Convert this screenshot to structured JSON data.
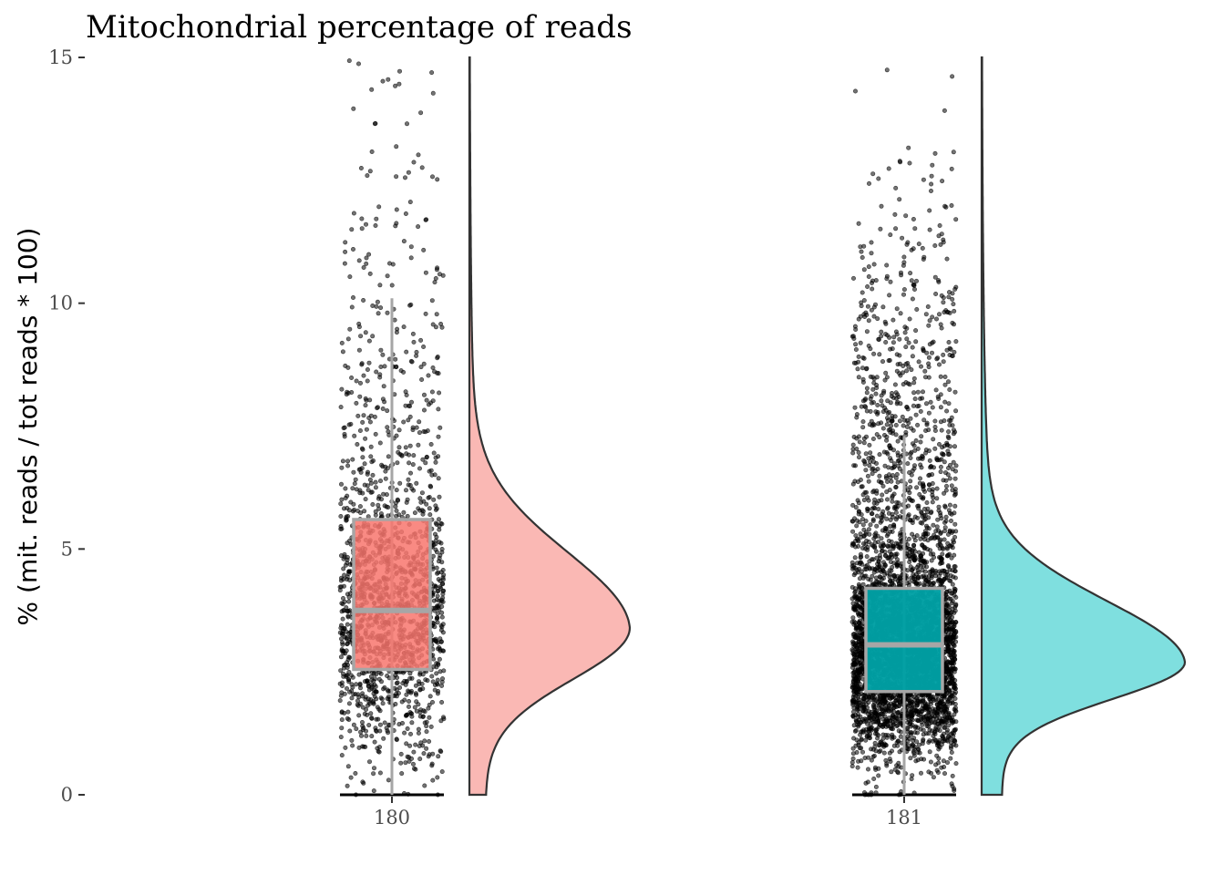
{
  "chart_data": {
    "type": "raincloud",
    "title": "Mitochondrial percentage of reads",
    "xlabel": "",
    "ylabel": "% (mit. reads / tot reads * 100)",
    "ylim": [
      0,
      15
    ],
    "yticks": [
      0,
      5,
      10,
      15
    ],
    "grid": false,
    "legend": "none",
    "categories": [
      "180",
      "181"
    ],
    "series": [
      {
        "category": "180",
        "color": "#F8766D",
        "violin_fill": "#FAB8B4",
        "box": {
          "q1": 2.55,
          "median": 3.75,
          "q3": 5.6,
          "whisker_low": 0.0,
          "whisker_high": 10.1
        },
        "density_peak": 3.4,
        "points_n": 1700
      },
      {
        "category": "181",
        "color": "#00A0A4",
        "violin_fill": "#7FDFDF",
        "box": {
          "q1": 2.1,
          "median": 3.05,
          "q3": 4.2,
          "whisker_low": 0.0,
          "whisker_high": 7.3
        },
        "density_peak": 2.7,
        "points_n": 4200
      }
    ]
  }
}
